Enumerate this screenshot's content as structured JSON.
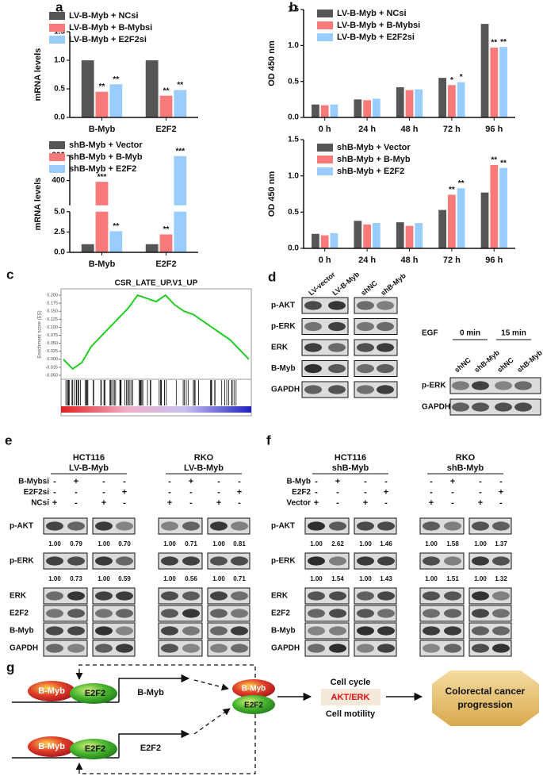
{
  "chart_data": [
    {
      "type": "bar",
      "label": "a",
      "ylabel": "mRNA levels",
      "categories": [
        "B-Myb",
        "E2F2"
      ],
      "series": [
        {
          "name": "LV-B-Myb + NCsi",
          "color": "#555555",
          "values": [
            1.0,
            1.0
          ]
        },
        {
          "name": "LV-B-Myb + B-Mybsi",
          "color": "#f87a7a",
          "values": [
            0.45,
            0.38
          ],
          "stars": [
            "**",
            "**"
          ]
        },
        {
          "name": "LV-B-Myb + E2F2si",
          "color": "#99ccff",
          "values": [
            0.58,
            0.48
          ],
          "stars": [
            "**",
            "**"
          ]
        }
      ],
      "ylim": [
        0,
        1.5
      ],
      "yticks": [
        {
          "value": 0,
          "label": "0.0"
        },
        {
          "value": 0.5,
          "label": "0.5"
        },
        {
          "value": 1,
          "label": "1.0"
        },
        {
          "value": 1.5,
          "label": "1.5"
        }
      ]
    },
    {
      "type": "bar",
      "ylabel": "mRNA levels",
      "categories": [
        "B-Myb",
        "E2F2"
      ],
      "series": [
        {
          "name": "shB-Myb + Vector",
          "color": "#555555",
          "values": [
            1.0,
            1.0
          ]
        },
        {
          "name": "shB-Myb + B-Myb",
          "color": "#f87a7a",
          "values": [
            380,
            2.2
          ],
          "stars": [
            "***",
            "**"
          ]
        },
        {
          "name": "shB-Myb + E2F2",
          "color": "#99ccff",
          "values": [
            2.6,
            790
          ],
          "stars": [
            "**",
            "***"
          ]
        }
      ],
      "ylim": [
        0,
        800
      ],
      "ysegments": [
        [
          0,
          5
        ],
        [
          5,
          800
        ]
      ],
      "yticks": [
        {
          "value": 0,
          "label": "0.0"
        },
        {
          "value": 2.5,
          "label": "2.5"
        },
        {
          "value": 5,
          "label": "5.0"
        },
        400,
        800
      ]
    },
    {
      "type": "bar",
      "label": "b",
      "ylabel": "OD 450 nm",
      "categories": [
        "0 h",
        "24 h",
        "48 h",
        "72 h",
        "96 h"
      ],
      "series": [
        {
          "name": "LV-B-Myb + NCsi",
          "color": "#555555",
          "values": [
            0.18,
            0.25,
            0.42,
            0.55,
            1.3
          ]
        },
        {
          "name": "LV-B-Myb + B-Mybsi",
          "color": "#f87a7a",
          "values": [
            0.17,
            0.24,
            0.38,
            0.45,
            0.97
          ],
          "stars": [
            null,
            null,
            null,
            "*",
            "**"
          ]
        },
        {
          "name": "LV-B-Myb + E2F2si",
          "color": "#99ccff",
          "values": [
            0.18,
            0.26,
            0.39,
            0.49,
            0.98
          ],
          "stars": [
            null,
            null,
            null,
            "*",
            "**"
          ]
        }
      ],
      "ylim": [
        0,
        1.5
      ],
      "yticks": [
        {
          "value": 0,
          "label": "0.0"
        },
        {
          "value": 0.5,
          "label": "0.5"
        },
        {
          "value": 1,
          "label": "1.0"
        },
        {
          "value": 1.5,
          "label": "1.5"
        }
      ]
    },
    {
      "type": "bar",
      "ylabel": "OD 450 nm",
      "categories": [
        "0 h",
        "24 h",
        "48 h",
        "72 h",
        "96 h"
      ],
      "series": [
        {
          "name": "shB-Myb + Vector",
          "color": "#555555",
          "values": [
            0.2,
            0.38,
            0.36,
            0.53,
            0.77
          ]
        },
        {
          "name": "shB-Myb + B-Myb",
          "color": "#f87a7a",
          "values": [
            0.18,
            0.33,
            0.31,
            0.74,
            1.15
          ],
          "stars": [
            null,
            null,
            null,
            "**",
            "**"
          ]
        },
        {
          "name": "shB-Myb + E2F2",
          "color": "#99ccff",
          "values": [
            0.21,
            0.35,
            0.35,
            0.83,
            1.11
          ],
          "stars": [
            null,
            null,
            null,
            "**",
            "**"
          ]
        }
      ],
      "ylim": [
        0,
        1.5
      ],
      "yticks": [
        {
          "value": 0,
          "label": "0.0"
        },
        {
          "value": 0.5,
          "label": "0.5"
        },
        {
          "value": 1,
          "label": "1.0"
        },
        {
          "value": 1.5,
          "label": "1.5"
        }
      ]
    },
    {
      "type": "line",
      "label": "c",
      "title": "CSR_LATE_UP.V1_UP",
      "ylabel": "Enrichment score (ES)",
      "x": [
        0,
        5,
        10,
        15,
        20,
        25,
        30,
        35,
        40,
        45,
        50,
        55,
        60,
        65,
        70,
        75,
        80,
        85,
        90,
        95,
        100
      ],
      "series": [
        {
          "color": "#22cc22",
          "values": [
            0.0,
            -0.03,
            -0.01,
            0.04,
            0.07,
            0.1,
            0.13,
            0.16,
            0.2,
            0.19,
            0.18,
            0.2,
            0.17,
            0.15,
            0.14,
            0.12,
            0.1,
            0.08,
            0.06,
            0.03,
            0.0
          ]
        }
      ],
      "xlim": [
        0,
        100
      ],
      "ylim": [
        -0.055,
        0.21
      ],
      "yticks": [
        {
          "value": 0.2,
          "label": "0.200"
        },
        {
          "value": 0.175,
          "label": "0.175"
        },
        {
          "value": 0.15,
          "label": "0.150"
        },
        {
          "value": 0.125,
          "label": "0.125"
        },
        {
          "value": 0.1,
          "label": "0.100"
        },
        {
          "value": 0.075,
          "label": "0.075"
        },
        {
          "value": 0.05,
          "label": "0.050"
        },
        {
          "value": 0.025,
          "label": "0.025"
        },
        {
          "value": 0,
          "label": "0.000"
        },
        {
          "value": -0.025,
          "label": "-0.025"
        },
        {
          "value": -0.05,
          "label": "-0.050"
        }
      ]
    }
  ],
  "panel_d": {
    "label": "d",
    "rows": [
      "p-AKT",
      "p-ERK",
      "ERK",
      "B-Myb",
      "GAPDH"
    ],
    "lanes_a": [
      "LV-vector",
      "LV-B-Myb"
    ],
    "lanes_b": [
      "shNC",
      "shB-Myb"
    ],
    "egf": {
      "label": "EGF",
      "times": [
        "0 min",
        "15 min"
      ],
      "lanes": [
        "shNC",
        "shB-Myb",
        "shNC",
        "shB-Myb"
      ],
      "rows": [
        "p-ERK",
        "GAPDH"
      ]
    }
  },
  "panel_e": {
    "label": "e",
    "groups": [
      {
        "title": "HCT116",
        "subtitle": "LV-B-Myb"
      },
      {
        "title": "RKO",
        "subtitle": "LV-B-Myb"
      }
    ],
    "conditions": [
      {
        "name": "B-Mybsi",
        "signs": [
          "-",
          "+",
          "-",
          "-",
          "-",
          "+",
          "-",
          "-"
        ]
      },
      {
        "name": "E2F2si",
        "signs": [
          "-",
          "-",
          "-",
          "+",
          "-",
          "-",
          "-",
          "+"
        ]
      },
      {
        "name": "NCsi",
        "signs": [
          "+",
          "-",
          "+",
          "-",
          "+",
          "-",
          "+",
          "-"
        ]
      }
    ],
    "rows": [
      {
        "name": "p-AKT",
        "quant": [
          "1.00",
          "0.79",
          "1.00",
          "0.70",
          "1.00",
          "0.71",
          "1.00",
          "0.81"
        ]
      },
      {
        "name": "p-ERK",
        "quant": [
          "1.00",
          "0.73",
          "1.00",
          "0.59",
          "1.00",
          "0.56",
          "1.00",
          "0.71"
        ]
      },
      {
        "name": "ERK"
      },
      {
        "name": "E2F2"
      },
      {
        "name": "B-Myb"
      },
      {
        "name": "GAPDH"
      }
    ]
  },
  "panel_f": {
    "label": "f",
    "groups": [
      {
        "title": "HCT116",
        "subtitle": "shB-Myb"
      },
      {
        "title": "RKO",
        "subtitle": "shB-Myb"
      }
    ],
    "conditions": [
      {
        "name": "B-Myb",
        "signs": [
          "-",
          "+",
          "-",
          "-",
          "-",
          "+",
          "-",
          "-"
        ]
      },
      {
        "name": "E2F2",
        "signs": [
          "-",
          "-",
          "-",
          "+",
          "-",
          "-",
          "-",
          "+"
        ]
      },
      {
        "name": "Vector",
        "signs": [
          "+",
          "-",
          "+",
          "-",
          "+",
          "-",
          "+",
          "-"
        ]
      }
    ],
    "rows": [
      {
        "name": "p-AKT",
        "quant": [
          "1.00",
          "2.62",
          "1.00",
          "1.46",
          "1.00",
          "1.58",
          "1.00",
          "1.37"
        ]
      },
      {
        "name": "p-ERK",
        "quant": [
          "1.00",
          "1.54",
          "1.00",
          "1.43",
          "1.00",
          "1.51",
          "1.00",
          "1.32"
        ]
      },
      {
        "name": "ERK"
      },
      {
        "name": "E2F2"
      },
      {
        "name": "B-Myb"
      },
      {
        "name": "GAPDH"
      }
    ]
  },
  "panel_g": {
    "label": "g",
    "gene1": {
      "protein1": "B-Myb",
      "protein2": "E2F2",
      "target": "B-Myb"
    },
    "gene2": {
      "protein1": "B-Myb",
      "protein2": "E2F2",
      "target": "E2F2"
    },
    "complex": {
      "top": "B-Myb",
      "bottom": "E2F2"
    },
    "effects": [
      "Cell cycle",
      "AKT/ERK",
      "Cell motility"
    ],
    "outcome": [
      "Colorectal cancer",
      "progression"
    ]
  }
}
